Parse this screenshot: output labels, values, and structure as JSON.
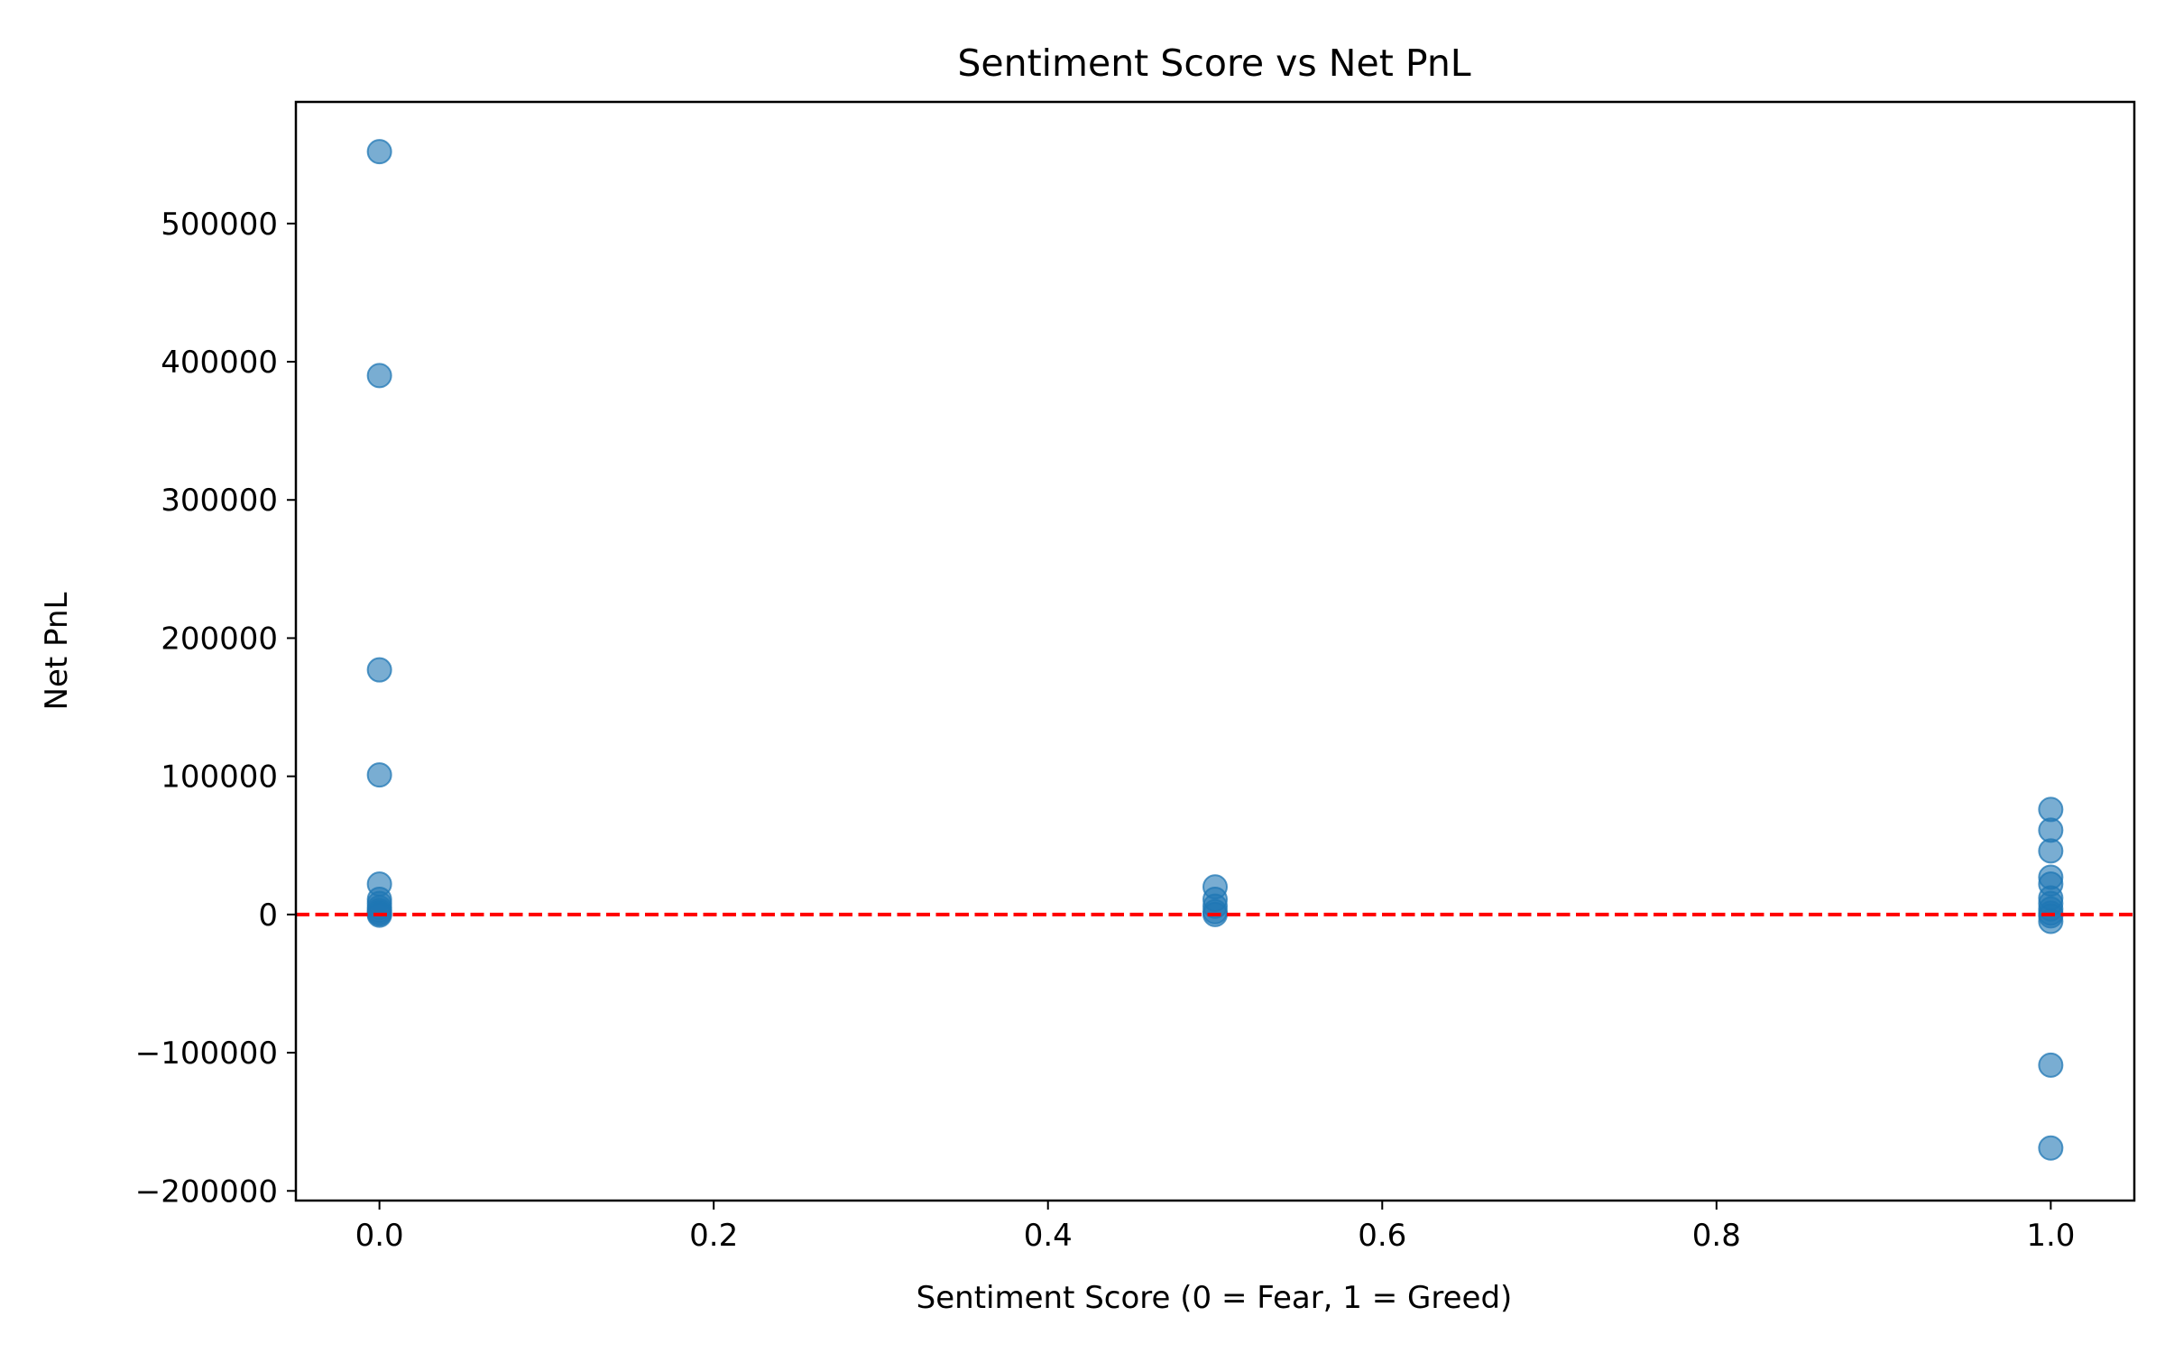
{
  "chart_data": {
    "type": "scatter",
    "title": "Sentiment Score vs Net PnL",
    "xlabel": "Sentiment Score (0 = Fear, 1 = Greed)",
    "ylabel": "Net PnL",
    "xlim": [
      -0.05,
      1.05
    ],
    "ylim": [
      -207000,
      588000
    ],
    "x_ticks": [
      0.0,
      0.2,
      0.4,
      0.6,
      0.8,
      1.0
    ],
    "x_tick_labels": [
      "0.0",
      "0.2",
      "0.4",
      "0.6",
      "0.8",
      "1.0"
    ],
    "y_ticks": [
      -200000,
      -100000,
      0,
      100000,
      200000,
      300000,
      400000,
      500000
    ],
    "y_tick_labels": [
      "−200000",
      "−100000",
      "0",
      "100000",
      "200000",
      "300000",
      "400000",
      "500000"
    ],
    "grid": false,
    "reference_line": {
      "y": 0,
      "color": "#ff0000",
      "style": "dashed"
    },
    "marker_color": "#1f77b4",
    "marker_alpha": 0.6,
    "points": [
      {
        "x": 0.0,
        "y": 552000
      },
      {
        "x": 0.0,
        "y": 390000
      },
      {
        "x": 0.0,
        "y": 177000
      },
      {
        "x": 0.0,
        "y": 101000
      },
      {
        "x": 0.0,
        "y": 22000
      },
      {
        "x": 0.0,
        "y": 11000
      },
      {
        "x": 0.0,
        "y": 8000
      },
      {
        "x": 0.0,
        "y": 5000
      },
      {
        "x": 0.0,
        "y": 3000
      },
      {
        "x": 0.0,
        "y": 1500
      },
      {
        "x": 0.0,
        "y": 500
      },
      {
        "x": 0.0,
        "y": -500
      },
      {
        "x": 0.5,
        "y": 20000
      },
      {
        "x": 0.5,
        "y": 11000
      },
      {
        "x": 0.5,
        "y": 6000
      },
      {
        "x": 0.5,
        "y": 2000
      },
      {
        "x": 0.5,
        "y": 0
      },
      {
        "x": 1.0,
        "y": 76000
      },
      {
        "x": 1.0,
        "y": 61000
      },
      {
        "x": 1.0,
        "y": 46000
      },
      {
        "x": 1.0,
        "y": 27000
      },
      {
        "x": 1.0,
        "y": 22000
      },
      {
        "x": 1.0,
        "y": 12000
      },
      {
        "x": 1.0,
        "y": 8000
      },
      {
        "x": 1.0,
        "y": 4000
      },
      {
        "x": 1.0,
        "y": 1000
      },
      {
        "x": 1.0,
        "y": -1000
      },
      {
        "x": 1.0,
        "y": -5000
      },
      {
        "x": 1.0,
        "y": -109000
      },
      {
        "x": 1.0,
        "y": -169000
      }
    ]
  }
}
